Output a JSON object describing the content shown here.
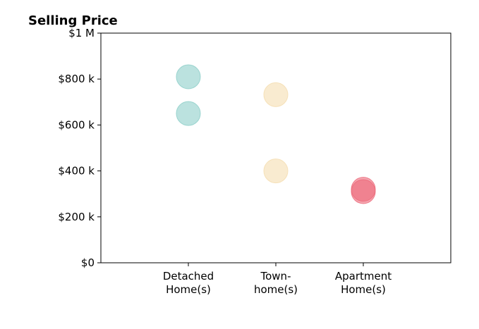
{
  "chart_data": {
    "type": "scatter",
    "title": "Selling Price",
    "categories": [
      "Detached\nHome(s)",
      "Town-\nhome(s)",
      "Apartment\nHome(s)"
    ],
    "x_range": [
      -1,
      3
    ],
    "ylim": [
      0,
      1000000
    ],
    "y_ticks": [
      {
        "value": 0,
        "label": "$0"
      },
      {
        "value": 200000,
        "label": "$200 k"
      },
      {
        "value": 400000,
        "label": "$400 k"
      },
      {
        "value": 600000,
        "label": "$600 k"
      },
      {
        "value": 800000,
        "label": "$800 k"
      },
      {
        "value": 1000000,
        "label": "$1 M"
      }
    ],
    "grid": false,
    "series": [
      {
        "category": "Detached\nHome(s)",
        "values": [
          810000,
          650000
        ],
        "color": "#8ecfc9"
      },
      {
        "category": "Town-\nhome(s)",
        "values": [
          732000,
          400000
        ],
        "color": "#f5ddb0"
      },
      {
        "category": "Apartment\nHome(s)",
        "values": [
          320000,
          310000
        ],
        "color": "#ec6b7b"
      }
    ]
  }
}
